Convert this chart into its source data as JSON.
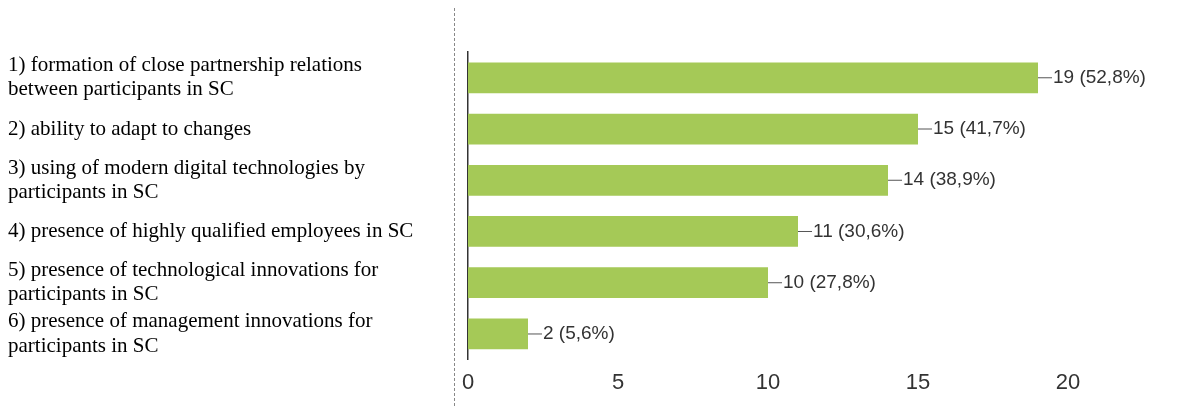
{
  "chart_data": {
    "type": "bar",
    "orientation": "horizontal",
    "categories": [
      "1) formation of close partnership relations between participants in SC",
      "2) ability to adapt to changes",
      "3) using of modern digital technologies by participants in SC",
      "4) presence of highly qualified employees in SC",
      "5) presence of technological innovations for participants in SC",
      "6) presence of management innovations for participants in SC"
    ],
    "values": [
      19,
      15,
      14,
      11,
      10,
      2
    ],
    "value_labels": [
      "19 (52,8%)",
      "15 (41,7%)",
      "14 (38,9%)",
      "11 (30,6%)",
      "10 (27,8%)",
      "2 (5,6%)"
    ],
    "color": "#a5c957",
    "xlim": [
      0,
      20
    ],
    "xticks": [
      0,
      5,
      10,
      15,
      20
    ],
    "grid": false,
    "legend": false
  }
}
